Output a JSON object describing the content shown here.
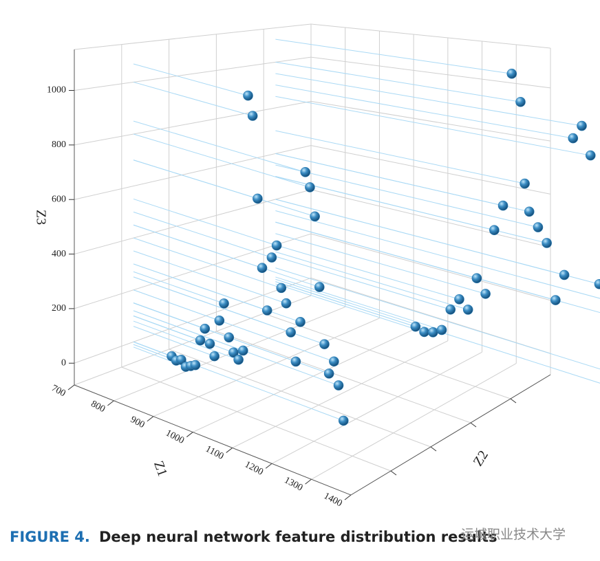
{
  "chart_data": {
    "type": "scatter3d",
    "caption_label": "FIGURE 4.",
    "caption": "Deep neural network feature distribution results",
    "watermark": "运城职业技术大学",
    "xlabel": "Z1",
    "ylabel": "Z2",
    "zlabel": "Z3",
    "xlim": [
      700,
      1400
    ],
    "xticks": [
      700,
      800,
      900,
      1000,
      1100,
      1200,
      1300,
      1400
    ],
    "zlim": [
      -80,
      1150
    ],
    "zticks": [
      0,
      200,
      400,
      600,
      800,
      1000
    ],
    "grid": true,
    "drop_line_color": "#a9d9f5",
    "series": [
      {
        "color": "#2b7bb2",
        "x": [
          1100,
          1125,
          1150,
          1175,
          1200,
          1225,
          1250,
          1275,
          1300,
          1325,
          1350,
          1375,
          1400,
          1412,
          1425,
          1450,
          1475,
          1500,
          1525,
          1550,
          1575,
          1600,
          1625,
          1650,
          1675,
          1700,
          1725
        ],
        "z": [
          40,
          30,
          40,
          60,
          150,
          200,
          170,
          300,
          250,
          500,
          600,
          1100,
          1000,
          700,
          600,
          550,
          500,
          300,
          400,
          900,
          950,
          850,
          400,
          350,
          300,
          100,
          50
        ]
      },
      {
        "color": "#2b7bb2",
        "x": [
          800,
          812,
          825,
          837,
          850,
          862,
          875,
          887,
          900,
          912,
          925,
          937,
          950,
          962,
          975,
          987,
          1000,
          1012,
          1025,
          1037,
          1050,
          1062,
          1075,
          1087,
          1100,
          1112,
          1125,
          1137,
          1150,
          1162,
          1175,
          1187,
          1200,
          1212,
          1225,
          1237,
          1250
        ],
        "z": [
          0,
          -10,
          0,
          -20,
          -10,
          0,
          100,
          150,
          100,
          60,
          200,
          270,
          150,
          100,
          80,
          120,
          1070,
          1000,
          700,
          450,
          300,
          500,
          550,
          400,
          350,
          250,
          150,
          300,
          850,
          800,
          700,
          450,
          250,
          150,
          200,
          120,
          0
        ]
      }
    ]
  }
}
